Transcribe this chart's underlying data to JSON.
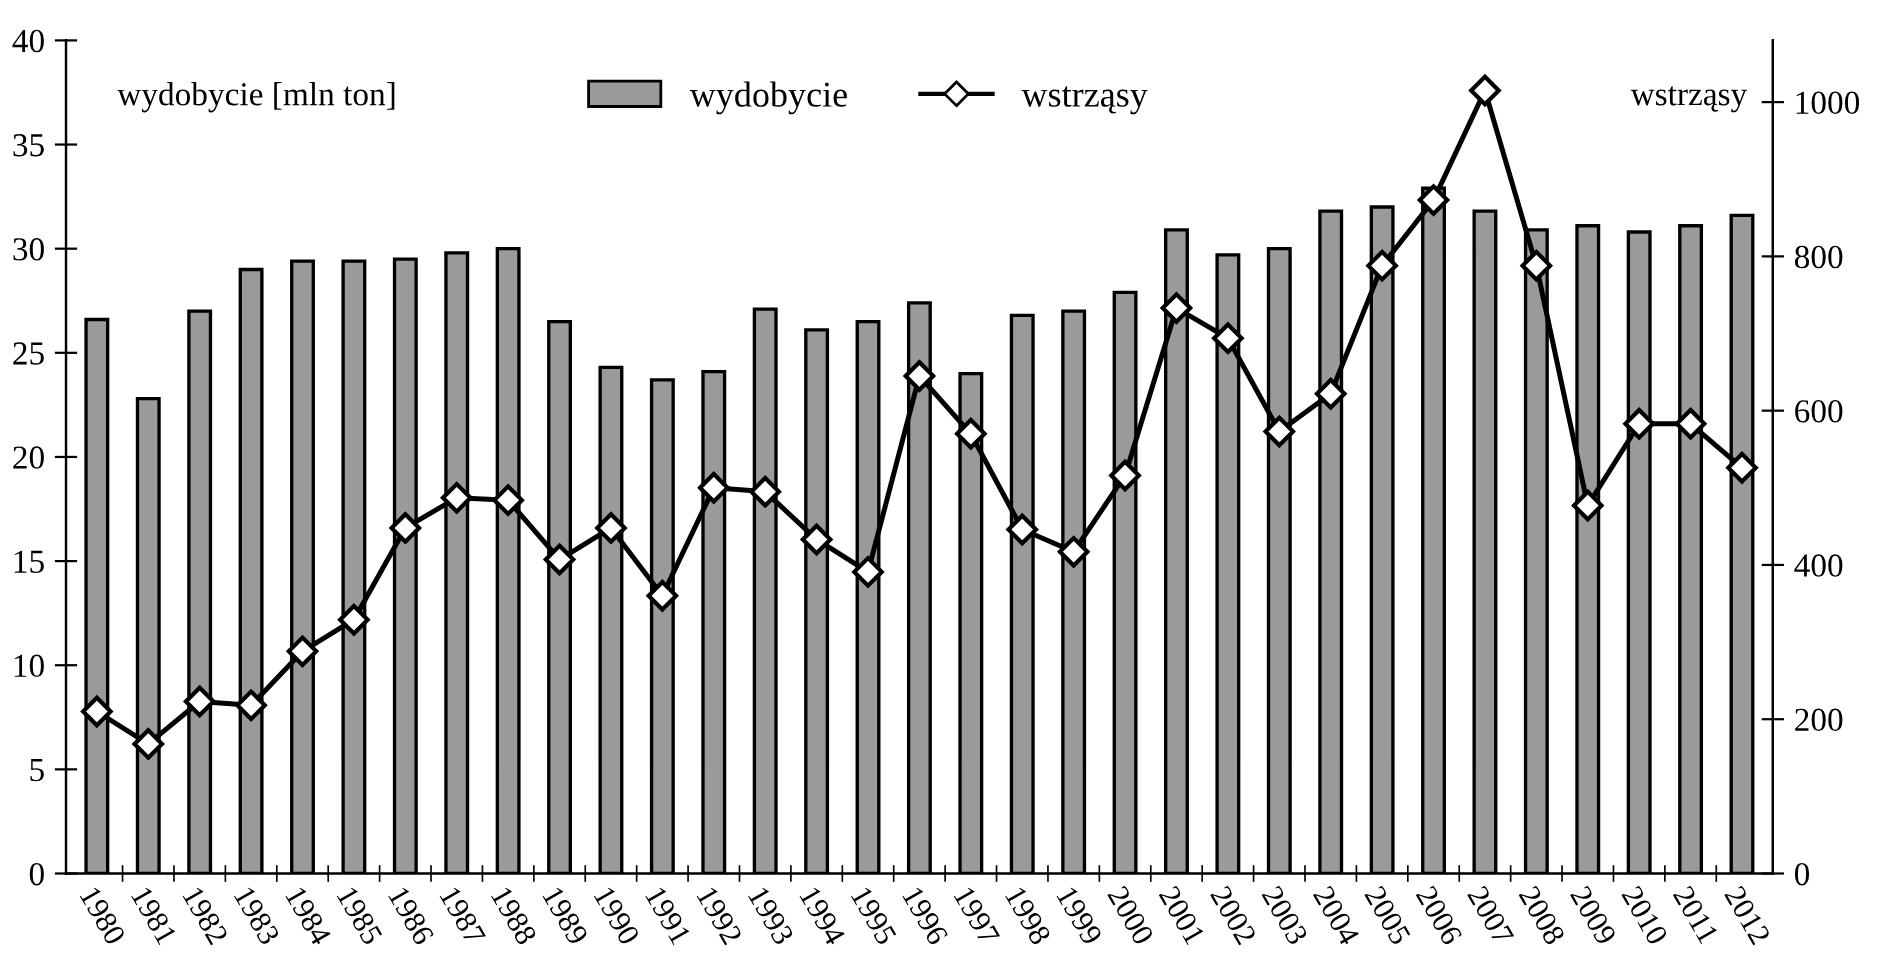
{
  "chart_data": {
    "type": "bar",
    "ylabel": "wydobycie [mln ton]",
    "y2label": "wstrząsy",
    "categories": [
      "1980",
      "1981",
      "1982",
      "1983",
      "1984",
      "1985",
      "1986",
      "1987",
      "1988",
      "1989",
      "1990",
      "1991",
      "1992",
      "1993",
      "1994",
      "1995",
      "1996",
      "1997",
      "1998",
      "1999",
      "2000",
      "2001",
      "2002",
      "2003",
      "2004",
      "2005",
      "2006",
      "2007",
      "2008",
      "2009",
      "2010",
      "2011",
      "2012"
    ],
    "series": [
      {
        "name": "wydobycie",
        "color": "#9a9a9a",
        "values": [
          26.6,
          22.8,
          27.0,
          29.0,
          29.4,
          29.4,
          29.5,
          29.8,
          30.0,
          26.5,
          24.3,
          23.7,
          24.1,
          27.1,
          26.1,
          26.5,
          27.4,
          24.0,
          26.8,
          27.0,
          27.9,
          30.9,
          29.7,
          30.0,
          31.8,
          32.0,
          32.9,
          31.8,
          30.9,
          31.1,
          30.8,
          31.1,
          31.6
        ]
      },
      {
        "name": "wstrząsy",
        "type": "line",
        "axis": "y2",
        "color": "#000000",
        "marker": "diamond",
        "values": [
          210,
          168,
          223,
          218,
          288,
          329,
          448,
          487,
          484,
          407,
          448,
          360,
          500,
          495,
          433,
          391,
          645,
          570,
          446,
          417,
          516,
          733,
          694,
          573,
          622,
          788,
          873,
          1015,
          788,
          477,
          583,
          583,
          526
        ]
      }
    ],
    "ylim": [
      0,
      40
    ],
    "yticks": [
      0,
      5,
      10,
      15,
      20,
      25,
      30,
      35,
      40
    ],
    "y2lim": [
      0,
      1080
    ],
    "y2ticks": [
      0,
      200,
      400,
      600,
      800,
      1000
    ],
    "grid": false,
    "legend": "top"
  }
}
